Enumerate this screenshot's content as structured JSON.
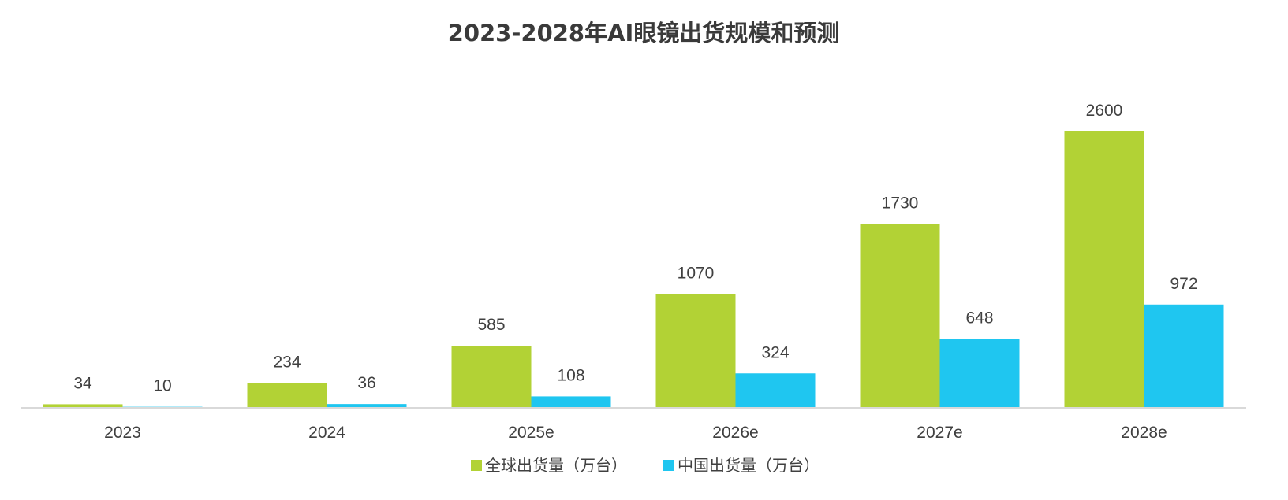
{
  "chart_data": {
    "type": "bar",
    "title": "2023-2028年AI眼镜出货规模和预测",
    "xlabel": "",
    "ylabel": "",
    "categories": [
      "2023",
      "2024",
      "2025e",
      "2026e",
      "2027e",
      "2028e"
    ],
    "series": [
      {
        "name": "全球出货量（万台）",
        "color": "#b2d235",
        "values": [
          34,
          234,
          585,
          1070,
          1730,
          2600
        ],
        "labels": [
          "34",
          "234",
          "585",
          "1070",
          "1730",
          "2600"
        ]
      },
      {
        "name": "中国出货量（万台）",
        "color": "#1fc6f0",
        "values": [
          10,
          36,
          108,
          324,
          648,
          972
        ],
        "labels": [
          "10",
          "36",
          "108",
          "324",
          "648",
          "972"
        ]
      }
    ],
    "ylim": [
      0,
      2600
    ],
    "grid": false,
    "legend_position": "bottom-center",
    "axis_line_color": "#d9d9d9"
  }
}
